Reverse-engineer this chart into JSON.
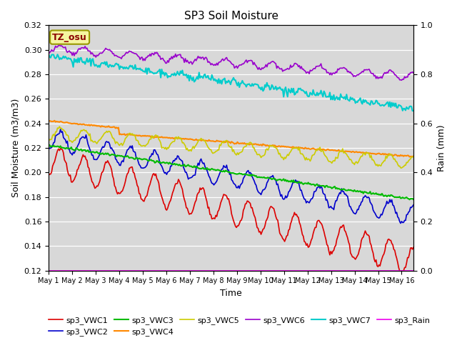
{
  "title": "SP3 Soil Moisture",
  "ylabel_left": "Soil Moisture (m3/m3)",
  "ylabel_right": "Rain (mm)",
  "xlabel": "Time",
  "xlim_days": 15.5,
  "ylim_left": [
    0.12,
    0.32
  ],
  "ylim_right": [
    0.0,
    1.0
  ],
  "background_color": "#d8d8d8",
  "x_ticks_labels": [
    "May 1",
    "May 2",
    "May 3",
    "May 4",
    "May 5",
    "May 6",
    "May 7",
    "May 8",
    "May 9",
    "May 10",
    "May 11",
    "May 12",
    "May 13",
    "May 14",
    "May 15",
    "May 16"
  ],
  "annotation_text": "TZ_osu",
  "annotation_bg": "#f5f5a0",
  "annotation_fg": "#8b0000",
  "series": {
    "sp3_VWC1": {
      "color": "#dd0000",
      "lw": 1.2
    },
    "sp3_VWC2": {
      "color": "#0000cc",
      "lw": 1.2
    },
    "sp3_VWC3": {
      "color": "#00bb00",
      "lw": 1.5
    },
    "sp3_VWC4": {
      "color": "#ff8800",
      "lw": 1.5
    },
    "sp3_VWC5": {
      "color": "#cccc00",
      "lw": 1.2
    },
    "sp3_VWC6": {
      "color": "#9900cc",
      "lw": 1.2
    },
    "sp3_VWC7": {
      "color": "#00cccc",
      "lw": 1.5
    },
    "sp3_Rain": {
      "color": "#ee00ee",
      "lw": 1.2
    }
  }
}
